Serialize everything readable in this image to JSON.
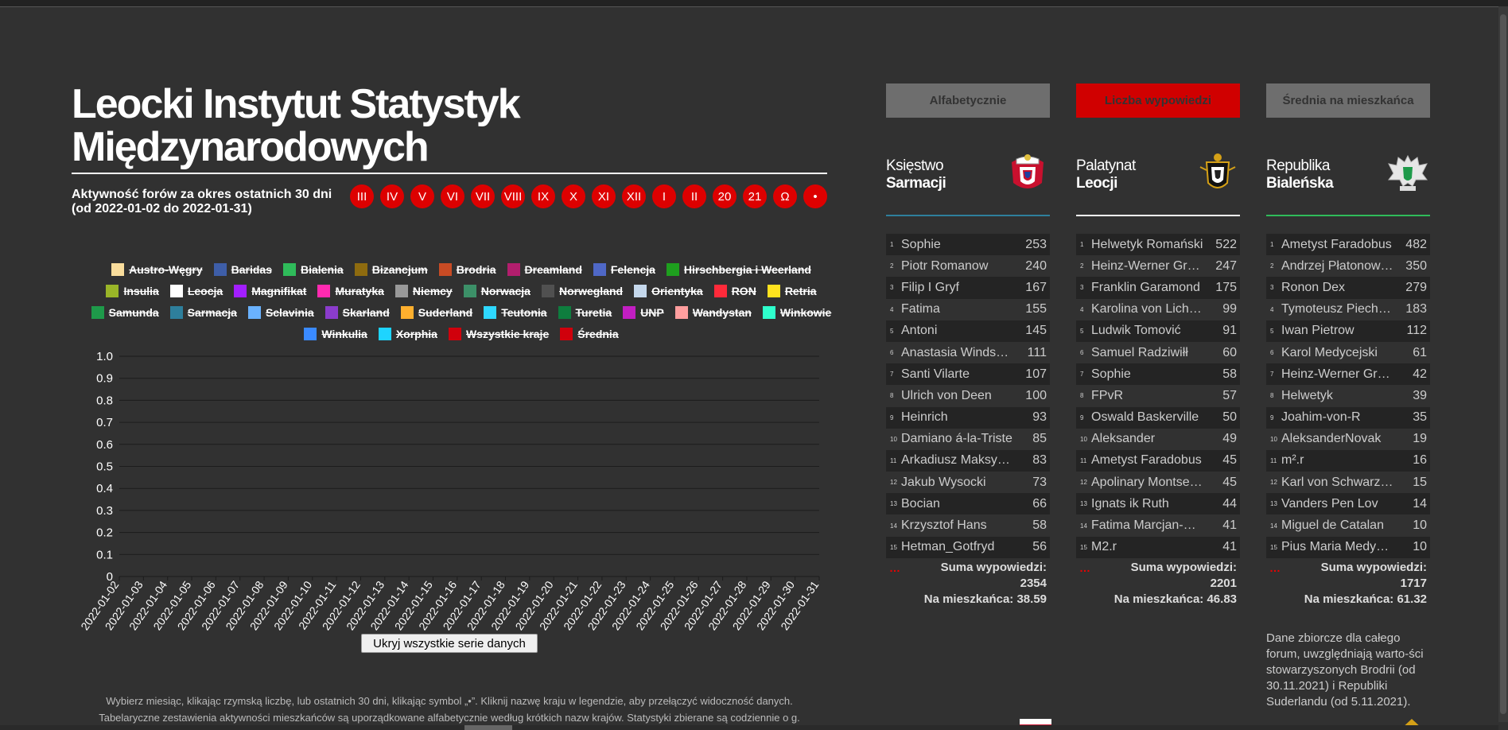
{
  "title": "Leocki Instytut Statystyk Międzynarodowych",
  "subtitle_line1": "Aktywność forów za okres ostatnich 30 dni",
  "subtitle_line2": "(od 2022-01-02 do 2022-01-31)",
  "months": [
    "III",
    "IV",
    "V",
    "VI",
    "VII",
    "VIII",
    "IX",
    "X",
    "XI",
    "XII",
    "I",
    "II",
    "20",
    "21",
    "Ω",
    "•"
  ],
  "legend": [
    {
      "label": "Austro-Węgry",
      "color": "#f9dd9c"
    },
    {
      "label": "Baridas",
      "color": "#3e5ea8"
    },
    {
      "label": "Bialenia",
      "color": "#2fbb5a"
    },
    {
      "label": "Bizancjum",
      "color": "#8e6b0f"
    },
    {
      "label": "Brodria",
      "color": "#c84b24"
    },
    {
      "label": "Dreamland",
      "color": "#b21e6d"
    },
    {
      "label": "Felencja",
      "color": "#4f68c7"
    },
    {
      "label": "Hirschbergia i Weerland",
      "color": "#1e9f1e"
    },
    {
      "label": "Insulia",
      "color": "#9ab528"
    },
    {
      "label": "Leocja",
      "color": "#ffffff"
    },
    {
      "label": "Magnifikat",
      "color": "#a21eff"
    },
    {
      "label": "Muratyka",
      "color": "#ff2ab0"
    },
    {
      "label": "Niemcy",
      "color": "#999999"
    },
    {
      "label": "Norwacja",
      "color": "#3c9068"
    },
    {
      "label": "Norwegland",
      "color": "#505050"
    },
    {
      "label": "Orientyka",
      "color": "#c5d8ec"
    },
    {
      "label": "RON",
      "color": "#ff2a3a"
    },
    {
      "label": "Retria",
      "color": "#ffe21e"
    },
    {
      "label": "Samunda",
      "color": "#1e9a4a"
    },
    {
      "label": "Sarmacja",
      "color": "#2e7f9c"
    },
    {
      "label": "Sclavinia",
      "color": "#6ab2ff"
    },
    {
      "label": "Skarland",
      "color": "#8b3ccc"
    },
    {
      "label": "Suderland",
      "color": "#ffb02e"
    },
    {
      "label": "Teutonia",
      "color": "#2ed8ff"
    },
    {
      "label": "Turetia",
      "color": "#0e7d3e"
    },
    {
      "label": "UNP",
      "color": "#c21ec2"
    },
    {
      "label": "Wandystan",
      "color": "#ff9e9e"
    },
    {
      "label": "Winkowie",
      "color": "#2effcc"
    },
    {
      "label": "Winkulia",
      "color": "#3a8aff"
    },
    {
      "label": "Xorphia",
      "color": "#1ed4ff"
    },
    {
      "label": "Wszystkie kraje",
      "color": "#d0000c"
    },
    {
      "label": "Średnia",
      "color": "#d0000c"
    }
  ],
  "chart_data": {
    "type": "line",
    "x": [
      "2022-01-02",
      "2022-01-03",
      "2022-01-04",
      "2022-01-05",
      "2022-01-06",
      "2022-01-07",
      "2022-01-08",
      "2022-01-09",
      "2022-01-10",
      "2022-01-11",
      "2022-01-12",
      "2022-01-13",
      "2022-01-14",
      "2022-01-15",
      "2022-01-16",
      "2022-01-17",
      "2022-01-18",
      "2022-01-19",
      "2022-01-20",
      "2022-01-21",
      "2022-01-22",
      "2022-01-23",
      "2022-01-24",
      "2022-01-25",
      "2022-01-26",
      "2022-01-27",
      "2022-01-28",
      "2022-01-29",
      "2022-01-30",
      "2022-01-31"
    ],
    "y_ticks": [
      "1.0",
      "0.9",
      "0.8",
      "0.7",
      "0.6",
      "0.5",
      "0.4",
      "0.3",
      "0.2",
      "0.1",
      "0"
    ],
    "ylim": [
      0,
      1
    ],
    "series": [],
    "grid": true
  },
  "hide_button": "Ukryj wszystkie serie danych",
  "footnote_line1": "Wybierz miesiąc, klikając rzymską liczbę, lub ostatnich 30 dni, klikając symbol „•”. Kliknij nazwę kraju w legendzie, aby przełączyć widoczność danych.",
  "footnote_line2": "Tabelaryczne zestawienia aktywności mieszkańców są uporządkowane alfabetycznie według krótkich nazw krajów. Statystyki zbierane są codziennie o g.",
  "sort_buttons": [
    {
      "label": "Alfabetycznie",
      "bg": "#6e6e6e"
    },
    {
      "label": "Liczba wypowiedzi",
      "bg": "#d00000"
    },
    {
      "label": "Średnia na mieszkańca",
      "bg": "#6e6e6e"
    }
  ],
  "panels": [
    {
      "name_top": "Księstwo",
      "name_bottom": "Sarmacji",
      "rule_color": "#2e7f9c",
      "rows": [
        {
          "rank": "1",
          "name": "Sophie",
          "value": "253"
        },
        {
          "rank": "2",
          "name": "Piotr Romanow",
          "value": "240"
        },
        {
          "rank": "3",
          "name": "Filip I Gryf",
          "value": "167"
        },
        {
          "rank": "4",
          "name": "Fatima",
          "value": "155"
        },
        {
          "rank": "5",
          "name": "Antoni",
          "value": "145"
        },
        {
          "rank": "6",
          "name": "Anastasia Windsa…",
          "value": "111"
        },
        {
          "rank": "7",
          "name": "Santi Vilarte",
          "value": "107"
        },
        {
          "rank": "8",
          "name": "Ulrich von Deen",
          "value": "100"
        },
        {
          "rank": "9",
          "name": "Heinrich",
          "value": "93"
        },
        {
          "rank": "10",
          "name": "Damiano á-la-Triste",
          "value": "85"
        },
        {
          "rank": "11",
          "name": "Arkadiusz Maksy…",
          "value": "83"
        },
        {
          "rank": "12",
          "name": "Jakub Wysocki",
          "value": "73"
        },
        {
          "rank": "13",
          "name": "Bocian",
          "value": "66"
        },
        {
          "rank": "14",
          "name": "Krzysztof Hans",
          "value": "58"
        },
        {
          "rank": "15",
          "name": "Hetman_Gotfryd",
          "value": "56"
        }
      ],
      "dots": "…",
      "sum_label": "Suma wypowiedzi:",
      "sum_value": "2354",
      "per_label": "Na mieszkańca: 38.59"
    },
    {
      "name_top": "Palatynat",
      "name_bottom": "Leocji",
      "rule_color": "#ffffff",
      "rows": [
        {
          "rank": "1",
          "name": "Helwetyk Romański",
          "value": "522"
        },
        {
          "rank": "2",
          "name": "Heinz-Werner Grü…",
          "value": "247"
        },
        {
          "rank": "3",
          "name": "Franklin Garamond",
          "value": "175"
        },
        {
          "rank": "4",
          "name": "Karolina von Licht…",
          "value": "99"
        },
        {
          "rank": "5",
          "name": "Ludwik Tomović",
          "value": "91"
        },
        {
          "rank": "6",
          "name": "Samuel Radziwiłł",
          "value": "60"
        },
        {
          "rank": "7",
          "name": "Sophie",
          "value": "58"
        },
        {
          "rank": "8",
          "name": "FPvR",
          "value": "57"
        },
        {
          "rank": "9",
          "name": "Oswald Baskerville",
          "value": "50"
        },
        {
          "rank": "10",
          "name": "Aleksander",
          "value": "49"
        },
        {
          "rank": "11",
          "name": "Ametyst Faradobus",
          "value": "45"
        },
        {
          "rank": "12",
          "name": "Apolinary Montser…",
          "value": "45"
        },
        {
          "rank": "13",
          "name": "Ignats ik Ruth",
          "value": "44"
        },
        {
          "rank": "14",
          "name": "Fatima Marcjan-C…",
          "value": "41"
        },
        {
          "rank": "15",
          "name": "M2.r",
          "value": "41"
        }
      ],
      "dots": "…",
      "sum_label": "Suma wypowiedzi:",
      "sum_value": "2201",
      "per_label": "Na mieszkańca: 46.83"
    },
    {
      "name_top": "Republika",
      "name_bottom": "Bialeńska",
      "rule_color": "#2fbb5a",
      "rows": [
        {
          "rank": "1",
          "name": "Ametyst Faradobus",
          "value": "482"
        },
        {
          "rank": "2",
          "name": "Andrzej Płatonowi…",
          "value": "350"
        },
        {
          "rank": "3",
          "name": "Ronon Dex",
          "value": "279"
        },
        {
          "rank": "4",
          "name": "Tymoteusz Piechota",
          "value": "183"
        },
        {
          "rank": "5",
          "name": "Iwan Pietrow",
          "value": "112"
        },
        {
          "rank": "6",
          "name": "Karol Medycejski",
          "value": "61"
        },
        {
          "rank": "7",
          "name": "Heinz-Werner Grü…",
          "value": "42"
        },
        {
          "rank": "8",
          "name": "Helwetyk",
          "value": "39"
        },
        {
          "rank": "9",
          "name": "Joahim-von-R",
          "value": "35"
        },
        {
          "rank": "10",
          "name": "AleksanderNovak",
          "value": "19"
        },
        {
          "rank": "11",
          "name": "m².r",
          "value": "16"
        },
        {
          "rank": "12",
          "name": "Karl von Schwarz…",
          "value": "15"
        },
        {
          "rank": "13",
          "name": "Vanders Pen Lov",
          "value": "14"
        },
        {
          "rank": "14",
          "name": "Miguel de Catalan",
          "value": "10"
        },
        {
          "rank": "15",
          "name": "Pius Maria Medyc…",
          "value": "10"
        }
      ],
      "dots": "…",
      "sum_label": "Suma wypowiedzi:",
      "sum_value": "1717",
      "per_label": "Na mieszkańca: 61.32"
    }
  ],
  "note": "Dane zbiorcze dla całego forum, uwzględniają warto-ści stowarzyszonych Brodrii (od 30.11.2021) i Republiki Suderlandu (od 5.11.2021)."
}
